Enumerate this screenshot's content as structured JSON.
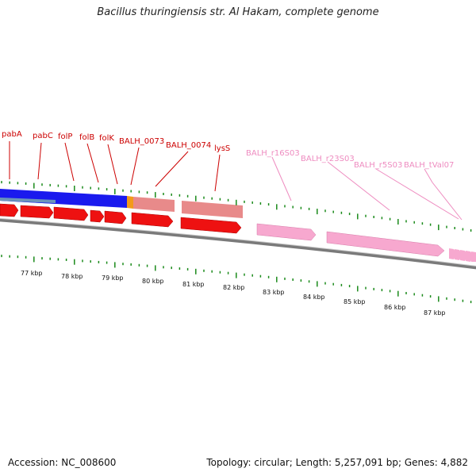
{
  "title": "Bacillus thuringiensis str. Al Hakam, complete genome",
  "footer": {
    "accession": "Accession: NC_008600",
    "summary": "Topology: circular; Length: 5,257,091 bp; Genes: 4,882"
  },
  "colors": {
    "cds": "#ee1111",
    "rna": "#f7a8cf",
    "cds_label": "#cc0000",
    "rna_label": "#ee8cc0",
    "tick": "#1a8a1a",
    "backbone": "#888888",
    "blue_band": "#1a1aee",
    "salmon_band": "#e88a8a",
    "orange_band": "#f39a1a",
    "steel_band": "#5a8ab0"
  },
  "gene_labels": [
    {
      "text": "pabA",
      "type": "cds"
    },
    {
      "text": "pabC",
      "type": "cds"
    },
    {
      "text": "folP",
      "type": "cds"
    },
    {
      "text": "folB",
      "type": "cds"
    },
    {
      "text": "folK",
      "type": "cds"
    },
    {
      "text": "BALH_0073",
      "type": "cds"
    },
    {
      "text": "BALH_0074",
      "type": "cds"
    },
    {
      "text": "lysS",
      "type": "cds"
    },
    {
      "text": "BALH_r16S03",
      "type": "rna"
    },
    {
      "text": "BALH_r23S03",
      "type": "rna"
    },
    {
      "text": "BALH_r5S03",
      "type": "rna"
    },
    {
      "text": "BALH_tVal07",
      "type": "rna"
    }
  ],
  "scale_labels": [
    "77 kbp",
    "78 kbp",
    "79 kbp",
    "80 kbp",
    "81 kbp",
    "82 kbp",
    "83 kbp",
    "84 kbp",
    "85 kbp",
    "86 kbp",
    "87 kbp"
  ]
}
